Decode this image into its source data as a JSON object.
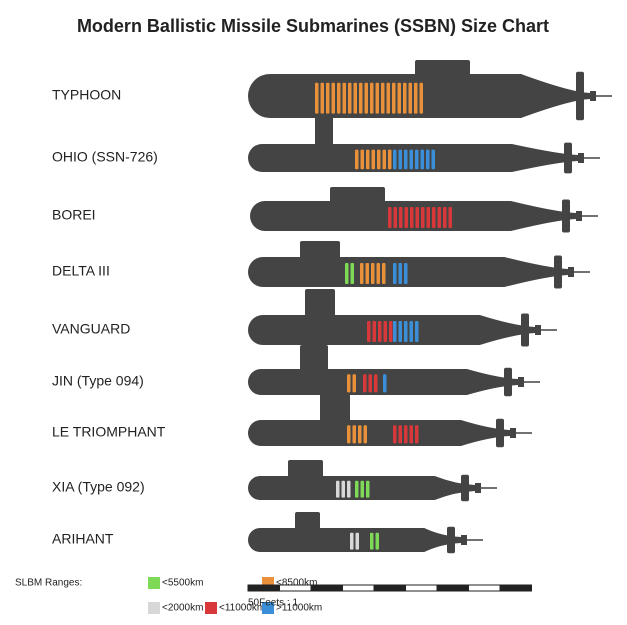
{
  "title": "Modern Ballistic Missile Submarines (SSBN) Size Chart",
  "submarines": [
    {
      "name": "TYPHOON"
    },
    {
      "name": "OHIO (SSN-726)"
    },
    {
      "name": "BOREI"
    },
    {
      "name": "DELTA III"
    },
    {
      "name": "VANGUARD"
    },
    {
      "name": "JIN (Type 094)"
    },
    {
      "name": "LE TRIOMPHANT"
    },
    {
      "name": "XIA (Type 092)"
    },
    {
      "name": "ARIHANT"
    }
  ],
  "legend": {
    "title": "SLBM Ranges:",
    "items": [
      {
        "label": "<5500km",
        "color": "#7ed957"
      },
      {
        "label": "<8500km",
        "color": "#e8903a"
      },
      {
        "label": "<2000km",
        "color": "#d8d8d8"
      },
      {
        "label": "<11000km",
        "color": "#d8383a"
      },
      {
        "label": ">11000km",
        "color": "#3a8fd8"
      }
    ]
  },
  "scale": {
    "label": "50Feets : 1"
  }
}
